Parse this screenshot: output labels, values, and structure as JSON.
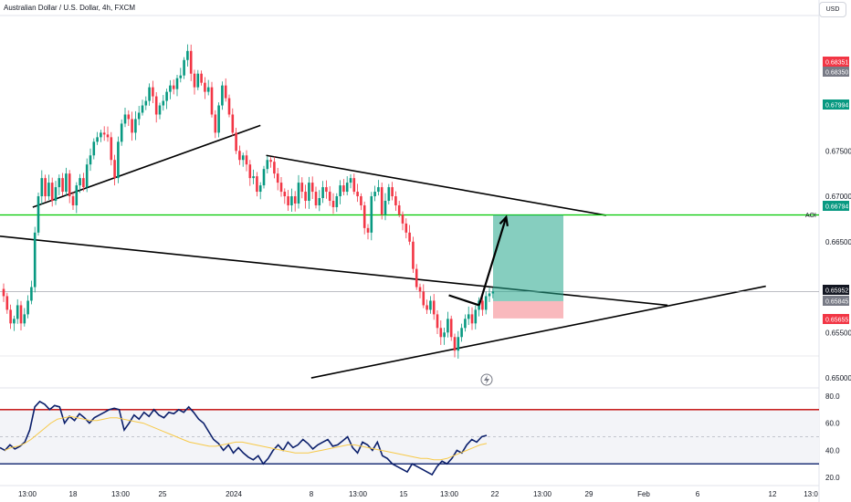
{
  "header": {
    "title": "Australian Dollar / U.S. Dollar, 4h, FXCM",
    "currency": "USD"
  },
  "colors": {
    "bull": "#089981",
    "bear": "#f23645",
    "ma": "#f7c948",
    "rsi": "#0b1f6b",
    "aoi": "#00c800"
  },
  "chart_data": {
    "type": "candlestick",
    "symbol": "AUD/USD",
    "timeframe": "4h",
    "source": "FXCM",
    "price_axis": {
      "ticks": [
        "0.67500",
        "0.67000",
        "0.66500",
        "0.65500",
        "0.65000"
      ],
      "range": [
        0.6492,
        0.6896
      ]
    },
    "time_axis": {
      "ticks": [
        "13:00",
        "18",
        "13:00",
        "25",
        "2024",
        "8",
        "13:00",
        "15",
        "13:00",
        "22",
        "13:00",
        "29",
        "Feb",
        "6",
        "12",
        "13:0"
      ]
    },
    "price_tags": [
      {
        "text": "0.68351",
        "color": "#f23645"
      },
      {
        "text": "0.68350",
        "color": "#787b86"
      },
      {
        "text": "0.67994",
        "color": "#089981"
      },
      {
        "text": "0.66794",
        "color": "#089981"
      },
      {
        "text": "0.65952",
        "color": "#131722"
      },
      {
        "text": "0.65845",
        "color": "#787b86"
      },
      {
        "text": "0.65655",
        "color": "#f23645"
      }
    ],
    "aoi": {
      "label": "AOI",
      "price": 0.66794
    },
    "position": {
      "entry": 0.65845,
      "target": 0.66794,
      "stop": 0.65655
    },
    "trendlines": [
      {
        "from": [
          0.0,
          0.6656
        ],
        "to": [
          0.815,
          0.658
        ]
      },
      {
        "from": [
          0.04,
          0.6688
        ],
        "to": [
          0.318,
          0.6778
        ]
      },
      {
        "from": [
          0.325,
          0.6745
        ],
        "to": [
          0.74,
          0.6679
        ]
      },
      {
        "from": [
          0.38,
          0.65
        ],
        "to": [
          0.935,
          0.6601
        ]
      }
    ],
    "arrows": [
      {
        "from": [
          0.548,
          0.6591
        ],
        "to": [
          0.585,
          0.658
        ]
      },
      {
        "from": [
          0.585,
          0.658
        ],
        "to": [
          0.618,
          0.6677
        ]
      }
    ],
    "closes": [
      0.659,
      0.6575,
      0.656,
      0.6565,
      0.658,
      0.656,
      0.657,
      0.6585,
      0.66,
      0.666,
      0.67,
      0.672,
      0.67,
      0.6715,
      0.6695,
      0.671,
      0.672,
      0.6705,
      0.6725,
      0.67,
      0.669,
      0.6712,
      0.672,
      0.671,
      0.6735,
      0.6745,
      0.676,
      0.6765,
      0.677,
      0.6768,
      0.6765,
      0.674,
      0.672,
      0.676,
      0.678,
      0.679,
      0.6785,
      0.677,
      0.6785,
      0.6792,
      0.68,
      0.6805,
      0.682,
      0.681,
      0.679,
      0.68,
      0.6805,
      0.6815,
      0.6822,
      0.6818,
      0.683,
      0.6833,
      0.685,
      0.686,
      0.6835,
      0.682,
      0.6835,
      0.6825,
      0.6815,
      0.682,
      0.679,
      0.677,
      0.68,
      0.6822,
      0.6808,
      0.679,
      0.677,
      0.675,
      0.674,
      0.6745,
      0.6735,
      0.672,
      0.6722,
      0.6705,
      0.6712,
      0.673,
      0.674,
      0.6738,
      0.6725,
      0.6715,
      0.6705,
      0.67,
      0.669,
      0.67,
      0.6692,
      0.6715,
      0.6705,
      0.6695,
      0.6715,
      0.6705,
      0.669,
      0.6698,
      0.671,
      0.6705,
      0.6695,
      0.6688,
      0.67,
      0.6712,
      0.6705,
      0.6715,
      0.672,
      0.6705,
      0.67,
      0.669,
      0.6665,
      0.666,
      0.67,
      0.6705,
      0.671,
      0.668,
      0.6695,
      0.671,
      0.67,
      0.669,
      0.668,
      0.667,
      0.666,
      0.665,
      0.662,
      0.66,
      0.6595,
      0.658,
      0.6575,
      0.6585,
      0.657,
      0.6555,
      0.6545,
      0.655,
      0.6565,
      0.6545,
      0.653,
      0.6545,
      0.6555,
      0.6565,
      0.657,
      0.656,
      0.6575,
      0.6585,
      0.6575,
      0.659,
      0.6593,
      0.6595
    ]
  },
  "rsi": {
    "ticks": [
      "80.0",
      "60.0",
      "40.0",
      "20.0"
    ],
    "range": [
      16,
      84
    ],
    "overbought": 70,
    "oversold": 30,
    "midline": 50,
    "values": [
      42,
      40,
      44,
      41,
      43,
      46,
      55,
      72,
      76,
      74,
      70,
      73,
      72,
      60,
      65,
      62,
      67,
      64,
      60,
      64,
      66,
      68,
      70,
      71,
      70,
      55,
      60,
      66,
      63,
      68,
      65,
      70,
      66,
      64,
      68,
      67,
      70,
      68,
      72,
      68,
      63,
      60,
      54,
      48,
      45,
      40,
      44,
      38,
      42,
      38,
      35,
      33,
      36,
      30,
      34,
      40,
      44,
      40,
      46,
      42,
      44,
      48,
      45,
      41,
      44,
      46,
      48,
      43,
      44,
      47,
      50,
      42,
      38,
      46,
      44,
      40,
      46,
      36,
      34,
      30,
      28,
      26,
      24,
      30,
      28,
      26,
      24,
      22,
      28,
      32,
      30,
      34,
      40,
      38,
      44,
      48,
      46,
      50,
      51
    ]
  },
  "ma_values": [
    40,
    42,
    43,
    45,
    48,
    52,
    56,
    60,
    63,
    64,
    65,
    64,
    63,
    62,
    62,
    63,
    64,
    64,
    63,
    62,
    61,
    60,
    58,
    56,
    54,
    52,
    50,
    48,
    46,
    45,
    44,
    43,
    43,
    44,
    45,
    46,
    46,
    45,
    44,
    43,
    42,
    41,
    40,
    39,
    38,
    38,
    38,
    39,
    40,
    41,
    42,
    43,
    44,
    44,
    43,
    42,
    41,
    40,
    39,
    38,
    37,
    36,
    35,
    34,
    34,
    33,
    33,
    34,
    36,
    38,
    40,
    42,
    44,
    45
  ]
}
